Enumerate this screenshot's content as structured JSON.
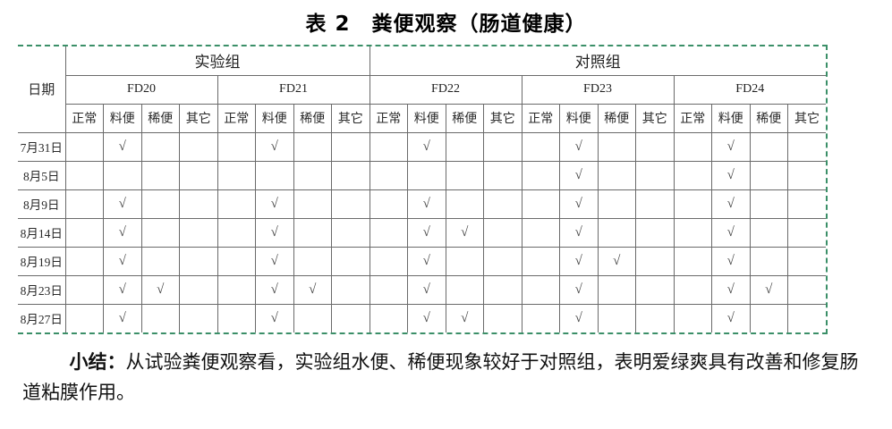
{
  "title": "表 2　粪便观察（肠道健康）",
  "table": {
    "date_header": "日期",
    "groups": [
      {
        "label": "实验组",
        "span": 8
      },
      {
        "label": "对照组",
        "span": 12
      }
    ],
    "fd_groups": [
      "FD20",
      "FD21",
      "FD22",
      "FD23",
      "FD24"
    ],
    "sub_columns": [
      "正常",
      "料便",
      "稀便",
      "其它"
    ],
    "checkmark_symbol": "√",
    "rows": [
      {
        "date": "7月31日",
        "cells": [
          "",
          "√",
          "",
          "",
          "",
          "√",
          "",
          "",
          "",
          "√",
          "",
          "",
          "",
          "√",
          "",
          "",
          "",
          "√",
          "",
          ""
        ]
      },
      {
        "date": "8月5日",
        "cells": [
          "",
          "",
          "",
          "",
          "",
          "",
          "",
          "",
          "",
          "",
          "",
          "",
          "",
          "√",
          "",
          "",
          "",
          "√",
          "",
          ""
        ]
      },
      {
        "date": "8月9日",
        "cells": [
          "",
          "√",
          "",
          "",
          "",
          "√",
          "",
          "",
          "",
          "√",
          "",
          "",
          "",
          "√",
          "",
          "",
          "",
          "√",
          "",
          ""
        ]
      },
      {
        "date": "8月14日",
        "cells": [
          "",
          "√",
          "",
          "",
          "",
          "√",
          "",
          "",
          "",
          "√",
          "√",
          "",
          "",
          "√",
          "",
          "",
          "",
          "√",
          "",
          ""
        ]
      },
      {
        "date": "8月19日",
        "cells": [
          "",
          "√",
          "",
          "",
          "",
          "√",
          "",
          "",
          "",
          "√",
          "",
          "",
          "",
          "√",
          "√",
          "",
          "",
          "√",
          "",
          ""
        ]
      },
      {
        "date": "8月23日",
        "cells": [
          "",
          "√",
          "√",
          "",
          "",
          "√",
          "√",
          "",
          "",
          "√",
          "",
          "",
          "",
          "√",
          "",
          "",
          "",
          "√",
          "√",
          ""
        ]
      },
      {
        "date": "8月27日",
        "cells": [
          "",
          "√",
          "",
          "",
          "",
          "√",
          "",
          "",
          "",
          "√",
          "√",
          "",
          "",
          "√",
          "",
          "",
          "",
          "√",
          "",
          ""
        ]
      }
    ]
  },
  "summary": {
    "label": "小结：",
    "text": "从试验粪便观察看，实验组水便、稀便现象较好于对照组，表明爱绿爽具有改善和修复肠道粘膜作用。"
  },
  "colors": {
    "table_outline_dashed": "#3b8f68",
    "grid_line": "#6a6a6a",
    "text": "#1f1f1f",
    "background": "#ffffff"
  }
}
